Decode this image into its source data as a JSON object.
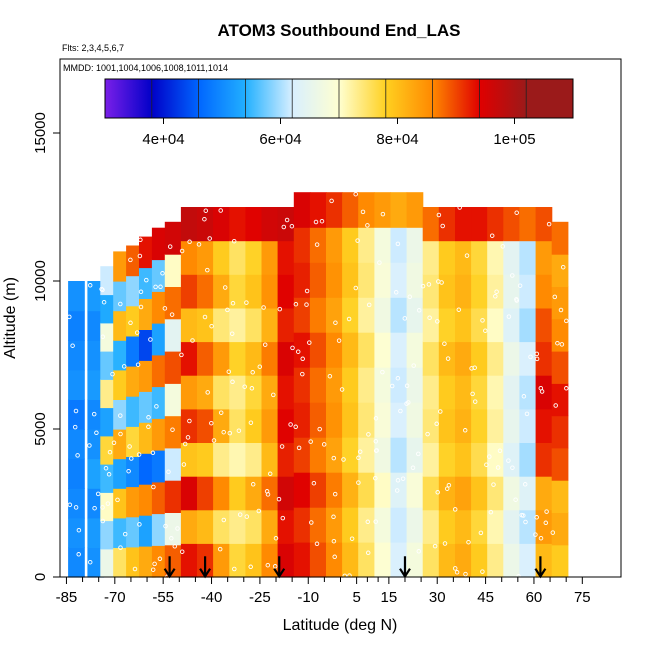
{
  "chart_data": {
    "type": "heatmap",
    "title": "ATOM3 Southbound End_LAS",
    "subtitle": "Flts: 2,3,4,5,6,7",
    "annotation": "MMDD: 1001,1004,1006,1008,1011,1014",
    "xlabel": "Latitude (deg N)",
    "ylabel": "Altitude (m)",
    "xlim": [
      -87,
      87
    ],
    "ylim": [
      0,
      17500
    ],
    "x_ticks": [
      -85,
      -70,
      -55,
      -40,
      -25,
      -10,
      5,
      15,
      30,
      45,
      60,
      75
    ],
    "x_tick_labels": [
      "-85",
      "-70",
      "-55",
      "-40",
      "-25",
      "-10",
      "5",
      "15",
      "30",
      "45",
      "60",
      "75"
    ],
    "y_ticks": [
      0,
      5000,
      10000,
      15000
    ],
    "y_tick_labels": [
      "0",
      "5000",
      "10000",
      "15000"
    ],
    "colorbar": {
      "range": [
        30000,
        110000
      ],
      "tick_values": [
        40000,
        60000,
        80000,
        100000
      ],
      "tick_labels": [
        "4e+04",
        "6e+04",
        "8e+04",
        "1e+05"
      ],
      "colors": [
        "#7a1fe8",
        "#0000c8",
        "#0066ff",
        "#22b0ff",
        "#d8efff",
        "#ffffd0",
        "#ffd020",
        "#ff8800",
        "#e00000",
        "#9b1a1a"
      ]
    },
    "columns": [
      {
        "lat": -82,
        "ytop": 10000,
        "values": [
          52000,
          53000,
          52000,
          51000,
          52000,
          50000,
          53000,
          52000,
          51000,
          53000
        ]
      },
      {
        "lat": -76,
        "ytop": 10000,
        "values": [
          53000,
          54000,
          52000,
          55000,
          53000,
          52000,
          54000,
          53000,
          52000,
          54000
        ]
      },
      {
        "lat": -72,
        "ytop": 10500,
        "values": [
          70000,
          62000,
          75000,
          58000,
          82000,
          55000,
          78000,
          60000,
          72000,
          56000,
          65000
        ]
      },
      {
        "lat": -68,
        "ytop": 11000,
        "values": [
          80000,
          58000,
          85000,
          55000,
          88000,
          62000,
          84000,
          57000,
          86000,
          60000,
          90000
        ]
      },
      {
        "lat": -64,
        "ytop": 11200,
        "values": [
          85000,
          60000,
          90000,
          52000,
          82000,
          58000,
          88000,
          50000,
          84000,
          62000,
          95000
        ]
      },
      {
        "lat": -60,
        "ytop": 11500,
        "values": [
          88000,
          55000,
          92000,
          48000,
          86000,
          60000,
          90000,
          45000,
          88000,
          58000,
          100000
        ]
      },
      {
        "lat": -56,
        "ytop": 11800,
        "values": [
          92000,
          62000,
          95000,
          50000,
          90000,
          58000,
          94000,
          55000,
          92000,
          60000,
          102000
        ]
      },
      {
        "lat": -52,
        "ytop": 12000,
        "values": [
          95000,
          70000,
          98000,
          65000,
          93000,
          72000,
          96000,
          68000,
          94000,
          75000,
          103000
        ]
      },
      {
        "lat": -47,
        "ytop": 12500,
        "values": [
          100000,
          88000,
          102000,
          85000,
          98000,
          90000,
          100000,
          86000,
          97000,
          92000,
          105000
        ]
      },
      {
        "lat": -42,
        "ytop": 12500,
        "values": [
          98000,
          86000,
          97000,
          84000,
          96000,
          88000,
          95000,
          85000,
          94000,
          90000,
          104000
        ]
      },
      {
        "lat": -37,
        "ytop": 12500,
        "values": [
          90000,
          80000,
          92000,
          78000,
          88000,
          80000,
          90000,
          79000,
          88000,
          84000,
          102000
        ]
      },
      {
        "lat": -32,
        "ytop": 12500,
        "values": [
          82000,
          78000,
          84000,
          76000,
          80000,
          78000,
          83000,
          77000,
          82000,
          80000,
          100000
        ]
      },
      {
        "lat": -27,
        "ytop": 12500,
        "values": [
          85000,
          80000,
          88000,
          78000,
          84000,
          82000,
          86000,
          80000,
          85000,
          83000,
          101000
        ]
      },
      {
        "lat": -22,
        "ytop": 12500,
        "values": [
          92000,
          88000,
          94000,
          86000,
          90000,
          88000,
          93000,
          87000,
          91000,
          90000,
          103000
        ]
      },
      {
        "lat": -17,
        "ytop": 12500,
        "values": [
          102000,
          100000,
          103000,
          99000,
          101000,
          100000,
          102000,
          99000,
          101000,
          100000,
          104000
        ]
      },
      {
        "lat": -12,
        "ytop": 13000,
        "values": [
          100000,
          98000,
          101000,
          97000,
          99000,
          98000,
          100000,
          97000,
          99000,
          98000,
          102000
        ]
      },
      {
        "lat": -7,
        "ytop": 13000,
        "values": [
          96000,
          94000,
          97000,
          93000,
          95000,
          94000,
          96000,
          93000,
          95000,
          94000,
          100000
        ]
      },
      {
        "lat": -2,
        "ytop": 13000,
        "values": [
          92000,
          90000,
          93000,
          89000,
          91000,
          90000,
          92000,
          89000,
          91000,
          90000,
          98000
        ]
      },
      {
        "lat": 3,
        "ytop": 13000,
        "values": [
          86000,
          84000,
          87000,
          83000,
          85000,
          84000,
          86000,
          83000,
          85000,
          84000,
          95000
        ]
      },
      {
        "lat": 8,
        "ytop": 13000,
        "values": [
          80000,
          78000,
          81000,
          77000,
          79000,
          78000,
          80000,
          77000,
          79000,
          78000,
          92000
        ]
      },
      {
        "lat": 13,
        "ytop": 13000,
        "values": [
          74000,
          72000,
          75000,
          71000,
          73000,
          72000,
          74000,
          71000,
          73000,
          72000,
          90000
        ]
      },
      {
        "lat": 18,
        "ytop": 13000,
        "values": [
          66000,
          65000,
          67000,
          64000,
          66000,
          65000,
          66000,
          64000,
          66000,
          65000,
          88000
        ]
      },
      {
        "lat": 23,
        "ytop": 13000,
        "values": [
          72000,
          70000,
          73000,
          69000,
          71000,
          70000,
          72000,
          69000,
          71000,
          70000,
          90000
        ]
      },
      {
        "lat": 28,
        "ytop": 12500,
        "values": [
          80000,
          78000,
          81000,
          77000,
          79000,
          78000,
          80000,
          77000,
          79000,
          78000,
          94000
        ]
      },
      {
        "lat": 33,
        "ytop": 12500,
        "values": [
          86000,
          84000,
          87000,
          83000,
          85000,
          84000,
          86000,
          83000,
          85000,
          84000,
          98000
        ]
      },
      {
        "lat": 38,
        "ytop": 12500,
        "values": [
          88000,
          86000,
          89000,
          85000,
          87000,
          86000,
          88000,
          85000,
          87000,
          86000,
          100000
        ]
      },
      {
        "lat": 43,
        "ytop": 12500,
        "values": [
          84000,
          82000,
          85000,
          81000,
          83000,
          82000,
          84000,
          81000,
          83000,
          82000,
          100000
        ]
      },
      {
        "lat": 48,
        "ytop": 12500,
        "values": [
          78000,
          76000,
          79000,
          75000,
          77000,
          76000,
          78000,
          75000,
          77000,
          76000,
          98000
        ]
      },
      {
        "lat": 53,
        "ytop": 12500,
        "values": [
          70000,
          68000,
          71000,
          67000,
          69000,
          68000,
          70000,
          67000,
          69000,
          68000,
          96000
        ]
      },
      {
        "lat": 58,
        "ytop": 12500,
        "values": [
          66000,
          64000,
          67000,
          63000,
          65000,
          64000,
          66000,
          63000,
          65000,
          64000,
          94000
        ]
      },
      {
        "lat": 63,
        "ytop": 12500,
        "values": [
          86000,
          90000,
          88000,
          98000,
          100000,
          102000,
          98000,
          96000,
          92000,
          90000,
          96000
        ]
      },
      {
        "lat": 68,
        "ytop": 12000,
        "values": [
          84000,
          88000,
          86000,
          96000,
          98000,
          100000,
          96000,
          92000,
          90000,
          88000,
          94000
        ]
      }
    ],
    "arrows_lat": [
      -53,
      -42,
      -19,
      20,
      62
    ]
  }
}
